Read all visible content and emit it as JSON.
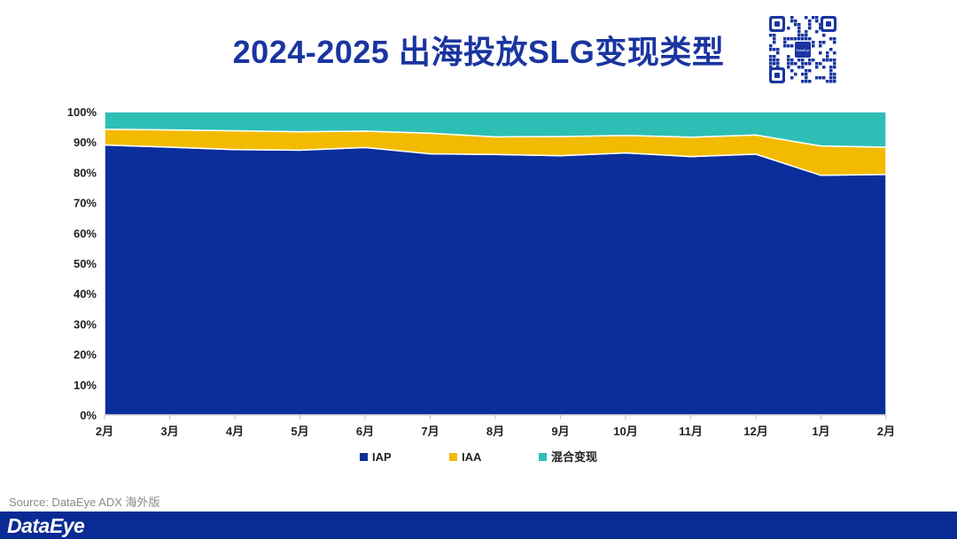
{
  "header": {
    "title": "2024-2025 出海投放SLG变现类型"
  },
  "qr_code": {
    "center_label": "DataEye"
  },
  "chart_data": {
    "type": "area",
    "stacked": true,
    "percent": true,
    "title": "2024-2025 出海投放SLG变现类型",
    "categories": [
      "2月",
      "3月",
      "4月",
      "5月",
      "6月",
      "7月",
      "8月",
      "9月",
      "10月",
      "11月",
      "12月",
      "1月",
      "2月"
    ],
    "series": [
      {
        "name": "IAP",
        "color": "#0a2e9c",
        "values": [
          89.0,
          88.3,
          87.5,
          87.3,
          88.2,
          86.1,
          85.9,
          85.5,
          86.4,
          85.2,
          86.0,
          79.0,
          79.3
        ]
      },
      {
        "name": "IAA",
        "color": "#f2bb00",
        "values": [
          5.2,
          5.7,
          6.2,
          6.1,
          5.4,
          6.8,
          5.8,
          6.3,
          5.8,
          6.4,
          6.3,
          9.7,
          9.0
        ]
      },
      {
        "name": "混合变现",
        "color": "#2dbfb6",
        "values": [
          5.8,
          6.0,
          6.3,
          6.6,
          6.4,
          7.1,
          8.3,
          8.2,
          7.8,
          8.4,
          7.7,
          11.3,
          11.7
        ]
      }
    ],
    "yticks": [
      "0%",
      "10%",
      "20%",
      "30%",
      "40%",
      "50%",
      "60%",
      "70%",
      "80%",
      "90%",
      "100%"
    ],
    "ylim": [
      0,
      100
    ],
    "legend_position": "bottom-center"
  },
  "footer": {
    "source": "Source: DataEye ADX 海外版",
    "brand": "DataEye"
  }
}
